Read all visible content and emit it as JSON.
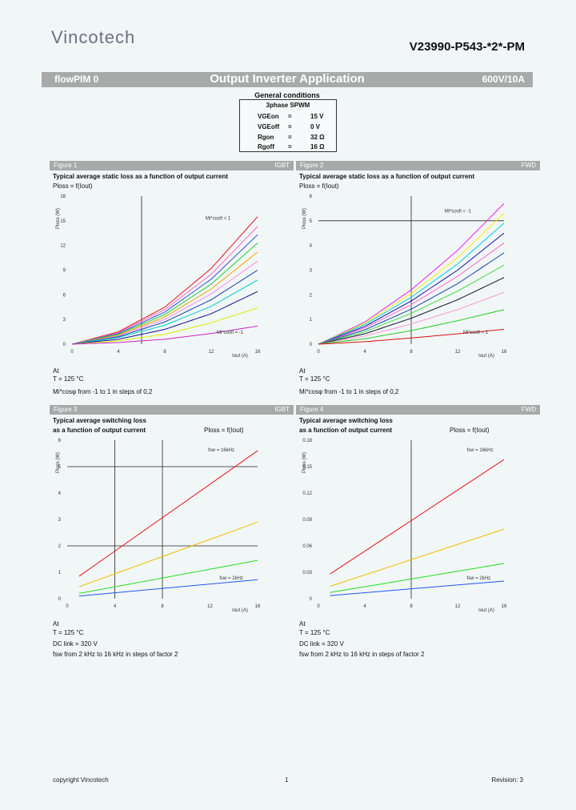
{
  "header": {
    "logo": "Vincotech",
    "part_number": "V23990-P543-*2*-PM",
    "bar_left": "flowPIM 0",
    "bar_title": "Output Inverter Application",
    "bar_right": "600V/10A"
  },
  "general_conditions": {
    "title": "General conditions",
    "mode": "3phase SPWM",
    "rows": [
      {
        "sym": "VGEon",
        "eq": "=",
        "val": "15 V"
      },
      {
        "sym": "VGEoff",
        "eq": "=",
        "val": "0 V"
      },
      {
        "sym": "Rgon",
        "eq": "=",
        "val": "32 Ω"
      },
      {
        "sym": "Rgoff",
        "eq": "=",
        "val": "16 Ω"
      }
    ]
  },
  "figures": [
    {
      "label": "Figure 1",
      "tag": "IGBT",
      "caption1": "Typical average static loss as a function of output current",
      "caption2": "",
      "formula": "Ploss = f(Iout)",
      "notes": [
        "At",
        "T =            125         °C",
        "Mi*cosφ from -1 to 1 in steps of 0,2"
      ]
    },
    {
      "label": "Figure 2",
      "tag": "FWD",
      "caption1": "Typical average static loss as a function of output current",
      "caption2": "",
      "formula": "Ploss = f(Iout)",
      "notes": [
        "At",
        "T =            125         °C",
        "Mi*cosφ from -1 to 1 in steps of 0,2"
      ]
    },
    {
      "label": "Figure 3",
      "tag": "IGBT",
      "caption1": "Typical average switching loss",
      "caption2": "as a function of output current",
      "formula": "Ploss = f(Iout)",
      "notes": [
        "At",
        "T =            125         °C",
        "DC link =     320          V",
        "fsw from       2 kHz to 16 kHz in steps of factor 2"
      ]
    },
    {
      "label": "Figure 4",
      "tag": "FWD",
      "caption1": "Typical average switching loss",
      "caption2": "as a function of output current",
      "formula": "Ploss = f(Iout)",
      "notes": [
        "At",
        "T =            125         °C",
        "DC link =     320          V",
        "fsw from       2 kHz to 16 kHz in steps of factor 2"
      ]
    }
  ],
  "chart_data": [
    {
      "type": "line",
      "xlabel": "Iout (A)",
      "ylabel": "Ploss (W)",
      "xlim": [
        0,
        16
      ],
      "ylim": [
        0,
        18
      ],
      "xticks": [
        0,
        4,
        8,
        12,
        16
      ],
      "yticks": [
        0,
        3,
        6,
        9,
        12,
        15,
        18
      ],
      "annotations": [
        "Mi*cosfi = 1",
        "Mi*cosfi = -1"
      ],
      "series": [
        {
          "color": "#e8141c",
          "x": [
            0,
            4,
            8,
            12,
            16
          ],
          "y": [
            0,
            1.5,
            4.5,
            9.2,
            15.5
          ]
        },
        {
          "color": "#ff66cc",
          "x": [
            0,
            4,
            8,
            12,
            16
          ],
          "y": [
            0,
            1.4,
            4.2,
            8.5,
            14.3
          ]
        },
        {
          "color": "#3355cc",
          "x": [
            0,
            4,
            8,
            12,
            16
          ],
          "y": [
            0,
            1.3,
            3.9,
            7.9,
            13.3
          ]
        },
        {
          "color": "#22cc33",
          "x": [
            0,
            4,
            8,
            12,
            16
          ],
          "y": [
            0,
            1.2,
            3.6,
            7.3,
            12.3
          ]
        },
        {
          "color": "#f0a000",
          "x": [
            0,
            4,
            8,
            12,
            16
          ],
          "y": [
            0,
            1.1,
            3.3,
            6.7,
            11.2
          ]
        },
        {
          "color": "#ff88ee",
          "x": [
            0,
            4,
            8,
            12,
            16
          ],
          "y": [
            0,
            1.0,
            3.0,
            6.1,
            10.1
          ]
        },
        {
          "color": "#1144aa",
          "x": [
            0,
            4,
            8,
            12,
            16
          ],
          "y": [
            0,
            0.9,
            2.7,
            5.4,
            9.0
          ]
        },
        {
          "color": "#00cccc",
          "x": [
            0,
            4,
            8,
            12,
            16
          ],
          "y": [
            0,
            0.8,
            2.3,
            4.6,
            7.8
          ]
        },
        {
          "color": "#11118a",
          "x": [
            0,
            4,
            8,
            12,
            16
          ],
          "y": [
            0,
            0.6,
            1.8,
            3.7,
            6.4
          ]
        },
        {
          "color": "#ddee00",
          "x": [
            0,
            4,
            8,
            12,
            16
          ],
          "y": [
            0,
            0.4,
            1.2,
            2.6,
            4.4
          ]
        },
        {
          "color": "#cc22cc",
          "x": [
            0,
            4,
            8,
            12,
            16
          ],
          "y": [
            0,
            0.2,
            0.6,
            1.3,
            2.2
          ]
        }
      ]
    },
    {
      "type": "line",
      "xlabel": "Iout (A)",
      "ylabel": "Ploss (W)",
      "xlim": [
        0,
        16
      ],
      "ylim": [
        0,
        6
      ],
      "xticks": [
        0,
        4,
        8,
        12,
        16
      ],
      "yticks": [
        0,
        1,
        2,
        3,
        4,
        5,
        6
      ],
      "annotations": [
        "Mi*cosfi = -1",
        "Mi*cosfi = 1"
      ],
      "series": [
        {
          "color": "#ee22ee",
          "x": [
            0,
            4,
            8,
            12,
            16
          ],
          "y": [
            0,
            0.9,
            2.2,
            3.8,
            5.7
          ]
        },
        {
          "color": "#ffee00",
          "x": [
            0,
            4,
            8,
            12,
            16
          ],
          "y": [
            0,
            0.85,
            2.05,
            3.5,
            5.3
          ]
        },
        {
          "color": "#00ccdd",
          "x": [
            0,
            4,
            8,
            12,
            16
          ],
          "y": [
            0,
            0.8,
            1.9,
            3.25,
            4.9
          ]
        },
        {
          "color": "#1111aa",
          "x": [
            0,
            4,
            8,
            12,
            16
          ],
          "y": [
            0,
            0.72,
            1.75,
            3.0,
            4.5
          ]
        },
        {
          "color": "#ff66cc",
          "x": [
            0,
            4,
            8,
            12,
            16
          ],
          "y": [
            0,
            0.66,
            1.6,
            2.75,
            4.1
          ]
        },
        {
          "color": "#1144aa",
          "x": [
            0,
            4,
            8,
            12,
            16
          ],
          "y": [
            0,
            0.58,
            1.42,
            2.45,
            3.7
          ]
        },
        {
          "color": "#44dd44",
          "x": [
            0,
            4,
            8,
            12,
            16
          ],
          "y": [
            0,
            0.5,
            1.25,
            2.15,
            3.2
          ]
        },
        {
          "color": "#111133",
          "x": [
            0,
            4,
            8,
            12,
            16
          ],
          "y": [
            0,
            0.42,
            1.05,
            1.8,
            2.7
          ]
        },
        {
          "color": "#ff99cc",
          "x": [
            0,
            4,
            8,
            12,
            16
          ],
          "y": [
            0,
            0.33,
            0.82,
            1.4,
            2.1
          ]
        },
        {
          "color": "#22cc22",
          "x": [
            0,
            4,
            8,
            12,
            16
          ],
          "y": [
            0,
            0.22,
            0.55,
            0.95,
            1.4
          ]
        },
        {
          "color": "#dd1111",
          "x": [
            0,
            4,
            8,
            12,
            16
          ],
          "y": [
            0,
            0.1,
            0.25,
            0.42,
            0.6
          ]
        }
      ]
    },
    {
      "type": "line",
      "xlabel": "Iout (A)",
      "ylabel": "Ploss (W)",
      "xlim": [
        0,
        16
      ],
      "ylim": [
        0,
        6
      ],
      "xticks": [
        0,
        4,
        8,
        12,
        16
      ],
      "yticks": [
        0,
        1,
        2,
        3,
        4,
        5,
        6
      ],
      "annotations": [
        "fsw = 16kHz",
        "fsw = 2kHz"
      ],
      "series": [
        {
          "color": "#e8141c",
          "x": [
            1,
            16
          ],
          "y": [
            0.85,
            5.6
          ]
        },
        {
          "color": "#f0c000",
          "x": [
            1,
            16
          ],
          "y": [
            0.45,
            2.9
          ]
        },
        {
          "color": "#22dd22",
          "x": [
            1,
            16
          ],
          "y": [
            0.2,
            1.45
          ]
        },
        {
          "color": "#2255ee",
          "x": [
            1,
            16
          ],
          "y": [
            0.1,
            0.72
          ]
        }
      ]
    },
    {
      "type": "line",
      "xlabel": "Iout (A)",
      "ylabel": "Ploss (W)",
      "xlim": [
        0,
        16
      ],
      "ylim": [
        0,
        0.18
      ],
      "xticks": [
        0,
        4,
        8,
        12,
        16
      ],
      "yticks": [
        0,
        0.03,
        0.06,
        0.09,
        0.12,
        0.15,
        0.18
      ],
      "annotations": [
        "fsw = 16kHz",
        "fsw = 2kHz"
      ],
      "series": [
        {
          "color": "#e8141c",
          "x": [
            1,
            16
          ],
          "y": [
            0.028,
            0.158
          ]
        },
        {
          "color": "#f0c000",
          "x": [
            1,
            16
          ],
          "y": [
            0.014,
            0.079
          ]
        },
        {
          "color": "#22dd22",
          "x": [
            1,
            16
          ],
          "y": [
            0.007,
            0.04
          ]
        },
        {
          "color": "#2255ee",
          "x": [
            1,
            16
          ],
          "y": [
            0.0035,
            0.02
          ]
        }
      ]
    }
  ],
  "footer": {
    "left": "copyright Vincotech",
    "center": "1",
    "right": "Revision: 3"
  }
}
